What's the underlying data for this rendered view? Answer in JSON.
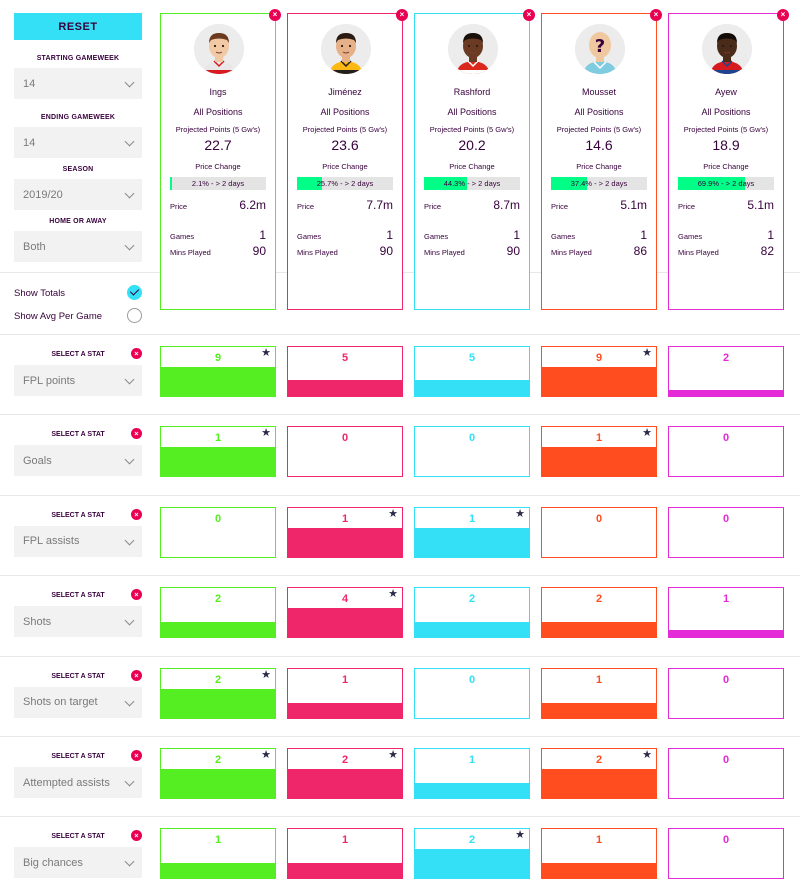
{
  "sidebar": {
    "reset_label": "RESET",
    "starting_gw": {
      "label": "STARTING GAMEWEEK",
      "value": "14"
    },
    "ending_gw": {
      "label": "ENDING GAMEWEEK",
      "value": "14"
    },
    "season": {
      "label": "SEASON",
      "value": "2019/20"
    },
    "venue": {
      "label": "HOME OR AWAY",
      "value": "Both"
    },
    "show_totals": {
      "label": "Show Totals",
      "checked": true
    },
    "show_avg": {
      "label": "Show Avg Per Game",
      "checked": false
    }
  },
  "card_labels": {
    "projected": "Projected Points (5 Gw's)",
    "price_change": "Price Change",
    "price": "Price",
    "games": "Games",
    "mins": "Mins Played"
  },
  "players": [
    {
      "name": "Ings",
      "position": "All Positions",
      "projected": "22.7",
      "price_change": "2.1% - > 2 days",
      "price_change_pct": 2.1,
      "price": "6.2m",
      "games": "1",
      "mins": "90",
      "color": "#55ee22"
    },
    {
      "name": "Jiménez",
      "position": "All Positions",
      "projected": "23.6",
      "price_change": "25.7% - > 2 days",
      "price_change_pct": 25.7,
      "price": "7.7m",
      "games": "1",
      "mins": "90",
      "color": "#f0266a"
    },
    {
      "name": "Rashford",
      "position": "All Positions",
      "projected": "20.2",
      "price_change": "44.3% - > 2 days",
      "price_change_pct": 44.3,
      "price": "8.7m",
      "games": "1",
      "mins": "90",
      "color": "#33e0f5"
    },
    {
      "name": "Mousset",
      "position": "All Positions",
      "projected": "14.6",
      "price_change": "37.4% - > 2 days",
      "price_change_pct": 37.4,
      "price": "5.1m",
      "games": "1",
      "mins": "86",
      "color": "#ff4d1f"
    },
    {
      "name": "Ayew",
      "position": "All Positions",
      "projected": "18.9",
      "price_change": "69.9% - > 2 days",
      "price_change_pct": 69.9,
      "price": "5.1m",
      "games": "1",
      "mins": "82",
      "color": "#e52bd8"
    }
  ],
  "stat_section_label": "SELECT A STAT",
  "stats": [
    {
      "name": "FPL points",
      "values": [
        "9",
        "5",
        "5",
        "9",
        "2"
      ],
      "bar_fraction": [
        1.0,
        0.56,
        0.56,
        1.0,
        0.22
      ],
      "starred": [
        true,
        false,
        false,
        true,
        false
      ]
    },
    {
      "name": "Goals",
      "values": [
        "1",
        "0",
        "0",
        "1",
        "0"
      ],
      "bar_fraction": [
        1.0,
        0,
        0,
        1.0,
        0
      ],
      "starred": [
        true,
        false,
        false,
        true,
        false
      ]
    },
    {
      "name": "FPL assists",
      "values": [
        "0",
        "1",
        "1",
        "0",
        "0"
      ],
      "bar_fraction": [
        0,
        1.0,
        1.0,
        0,
        0
      ],
      "starred": [
        false,
        true,
        true,
        false,
        false
      ]
    },
    {
      "name": "Shots",
      "values": [
        "2",
        "4",
        "2",
        "2",
        "1"
      ],
      "bar_fraction": [
        0.5,
        1.0,
        0.5,
        0.5,
        0.25
      ],
      "starred": [
        false,
        true,
        false,
        false,
        false
      ]
    },
    {
      "name": "Shots on target",
      "values": [
        "2",
        "1",
        "0",
        "1",
        "0"
      ],
      "bar_fraction": [
        1.0,
        0.5,
        0,
        0.5,
        0
      ],
      "starred": [
        true,
        false,
        false,
        false,
        false
      ]
    },
    {
      "name": "Attempted assists",
      "values": [
        "2",
        "2",
        "1",
        "2",
        "0"
      ],
      "bar_fraction": [
        1.0,
        1.0,
        0.5,
        1.0,
        0
      ],
      "starred": [
        true,
        true,
        false,
        true,
        false
      ]
    },
    {
      "name": "Big chances",
      "values": [
        "1",
        "1",
        "2",
        "1",
        "0"
      ],
      "bar_fraction": [
        0.5,
        0.5,
        1.0,
        0.5,
        0
      ],
      "starred": [
        false,
        false,
        true,
        false,
        false
      ]
    }
  ],
  "icons": {
    "remove": "close-icon",
    "best": "star-icon",
    "dropdown": "chevron-down-icon",
    "checked": "checkmark-icon"
  }
}
